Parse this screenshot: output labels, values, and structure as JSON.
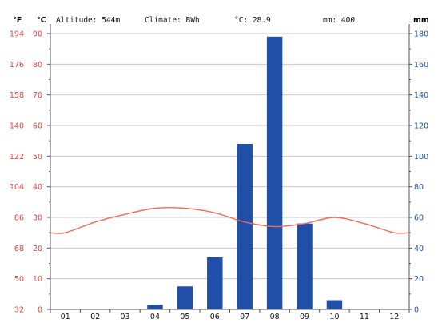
{
  "header": {
    "unit_f": "°F",
    "unit_c": "°C",
    "altitude": "Altitude: 544m",
    "climate": "Climate: BWh",
    "avg_temp": "°C: 28.9",
    "precip_total": "mm: 400",
    "unit_mm": "mm"
  },
  "colors": {
    "temp_axis": "#e8403a",
    "precip_axis": "#1f4fa6",
    "bar": "#1f4fa6",
    "temp_line": "#ef6b5b",
    "grid": "#c8c8c8",
    "axis": "#555555"
  },
  "chart_data": {
    "type": "bar",
    "categories": [
      "01",
      "02",
      "03",
      "04",
      "05",
      "06",
      "07",
      "08",
      "09",
      "10",
      "11",
      "12"
    ],
    "series": [
      {
        "type": "bar",
        "axis": "right",
        "unit": "mm",
        "values": [
          0,
          0,
          0,
          3,
          15,
          34,
          108,
          178,
          56,
          6,
          0,
          0
        ]
      },
      {
        "type": "line",
        "axis": "left",
        "unit": "°C",
        "values": [
          25.0,
          28.5,
          31.0,
          33.0,
          33.0,
          31.5,
          28.5,
          27.0,
          28.0,
          30.0,
          28.0,
          25.0
        ]
      }
    ],
    "y_left_c": {
      "min": 0,
      "max": 90,
      "ticks": [
        "0",
        "10",
        "20",
        "30",
        "40",
        "50",
        "60",
        "70",
        "80",
        "90"
      ]
    },
    "y_left_f": {
      "ticks": [
        "32",
        "50",
        "68",
        "86",
        "104",
        "122",
        "140",
        "158",
        "176",
        "194"
      ]
    },
    "y_right_mm": {
      "min": 0,
      "max": 180,
      "ticks": [
        "0",
        "20",
        "40",
        "60",
        "80",
        "100",
        "120",
        "140",
        "160",
        "180"
      ]
    },
    "grid": true
  }
}
